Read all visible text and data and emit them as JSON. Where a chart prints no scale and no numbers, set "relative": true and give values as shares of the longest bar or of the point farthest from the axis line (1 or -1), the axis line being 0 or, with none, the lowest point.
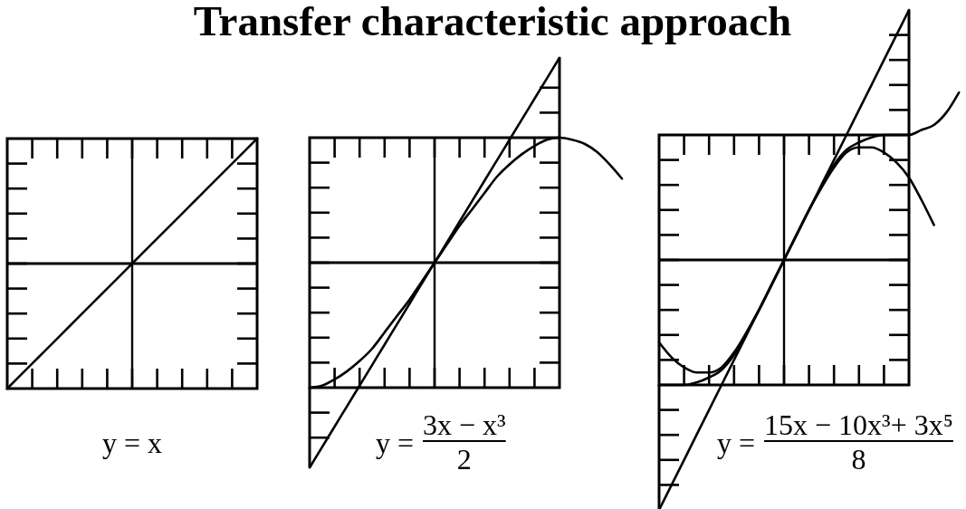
{
  "chart_data": [
    {
      "type": "line",
      "title": "Transfer characteristic approach",
      "relative": true,
      "categories": [
        null,
        null,
        null,
        null,
        null,
        null,
        null,
        null,
        null,
        null,
        null,
        null,
        null,
        null,
        null,
        null,
        null,
        null,
        null,
        null,
        null
      ],
      "series": [
        {
          "color": "#000000",
          "values": [
            -1,
            -0.9,
            -0.8,
            -0.7,
            -0.6,
            -0.5,
            -0.4,
            -0.3,
            -0.2,
            -0.1,
            0,
            0.1,
            0.2,
            0.3,
            0.4,
            0.5,
            0.6,
            0.7,
            0.8,
            0.9,
            1
          ]
        }
      ],
      "ref_lines": [
        {
          "axis": "y",
          "value": 0,
          "color": "#000000"
        }
      ],
      "annotations": [
        "y = x"
      ]
    },
    {
      "type": "line",
      "relative": true,
      "categories": [
        null,
        null,
        null,
        null,
        null,
        null,
        null,
        null,
        null,
        null,
        null,
        null,
        null,
        null,
        null,
        null,
        null,
        null,
        null,
        null,
        null,
        null,
        null,
        null,
        null,
        null
      ],
      "series": [
        {
          "color": "#000000",
          "values": [
            -1,
            -0.9,
            -0.8,
            -0.7,
            -0.6,
            -0.5,
            -0.4,
            -0.3,
            -0.2,
            -0.1,
            0,
            0.1,
            0.2,
            0.3,
            0.4,
            0.5,
            0.6,
            0.7,
            0.8,
            0.9,
            1,
            null,
            null,
            null,
            null,
            null
          ]
        },
        {
          "color": "#000000",
          "values": [
            -0.61,
            -0.6,
            -0.57,
            -0.53,
            -0.48,
            -0.42,
            -0.34,
            -0.26,
            -0.18,
            -0.09,
            0,
            0.09,
            0.18,
            0.26,
            0.34,
            0.42,
            0.48,
            0.53,
            0.57,
            0.6,
            0.61,
            0.6,
            0.58,
            0.54,
            0.48,
            0.41
          ]
        }
      ],
      "ref_lines": [
        {
          "axis": "y",
          "value": 0,
          "color": "#000000"
        }
      ],
      "annotations": [
        "y =",
        "3x − x³",
        "2"
      ]
    },
    {
      "type": "line",
      "relative": true,
      "categories": [
        null,
        null,
        null,
        null,
        null,
        null,
        null,
        null,
        null,
        null,
        null,
        null,
        null,
        null,
        null,
        null,
        null,
        null,
        null,
        null,
        null,
        null,
        null,
        null,
        null
      ],
      "series": [
        {
          "color": "#000000",
          "values": [
            -1,
            -0.9,
            -0.8,
            -0.7,
            -0.6,
            -0.5,
            -0.4,
            -0.3,
            -0.2,
            -0.1,
            0,
            0.1,
            0.2,
            0.3,
            0.4,
            0.5,
            0.6,
            0.7,
            0.8,
            0.9,
            1,
            null,
            null,
            null,
            null
          ]
        },
        {
          "color": "#000000",
          "values": [
            -0.5,
            -0.5,
            -0.5,
            -0.49,
            -0.47,
            -0.44,
            -0.38,
            -0.29,
            -0.2,
            -0.1,
            0,
            0.1,
            0.2,
            0.29,
            0.38,
            0.44,
            0.47,
            0.49,
            0.5,
            0.5,
            0.5,
            0.52,
            0.54,
            0.59,
            0.67
          ]
        },
        {
          "color": "#000000",
          "values": [
            -0.33,
            -0.39,
            -0.43,
            -0.45,
            -0.45,
            -0.43,
            -0.37,
            -0.29,
            -0.2,
            -0.1,
            0,
            0.1,
            0.2,
            0.29,
            0.37,
            0.43,
            0.45,
            0.45,
            0.43,
            0.39,
            0.33,
            0.24,
            0.14,
            null,
            null
          ]
        }
      ],
      "ref_lines": [
        {
          "axis": "y",
          "value": 0,
          "color": "#000000"
        }
      ],
      "annotations": [
        "y =",
        "15x − 10x³+ 3x⁵",
        "8"
      ]
    }
  ]
}
